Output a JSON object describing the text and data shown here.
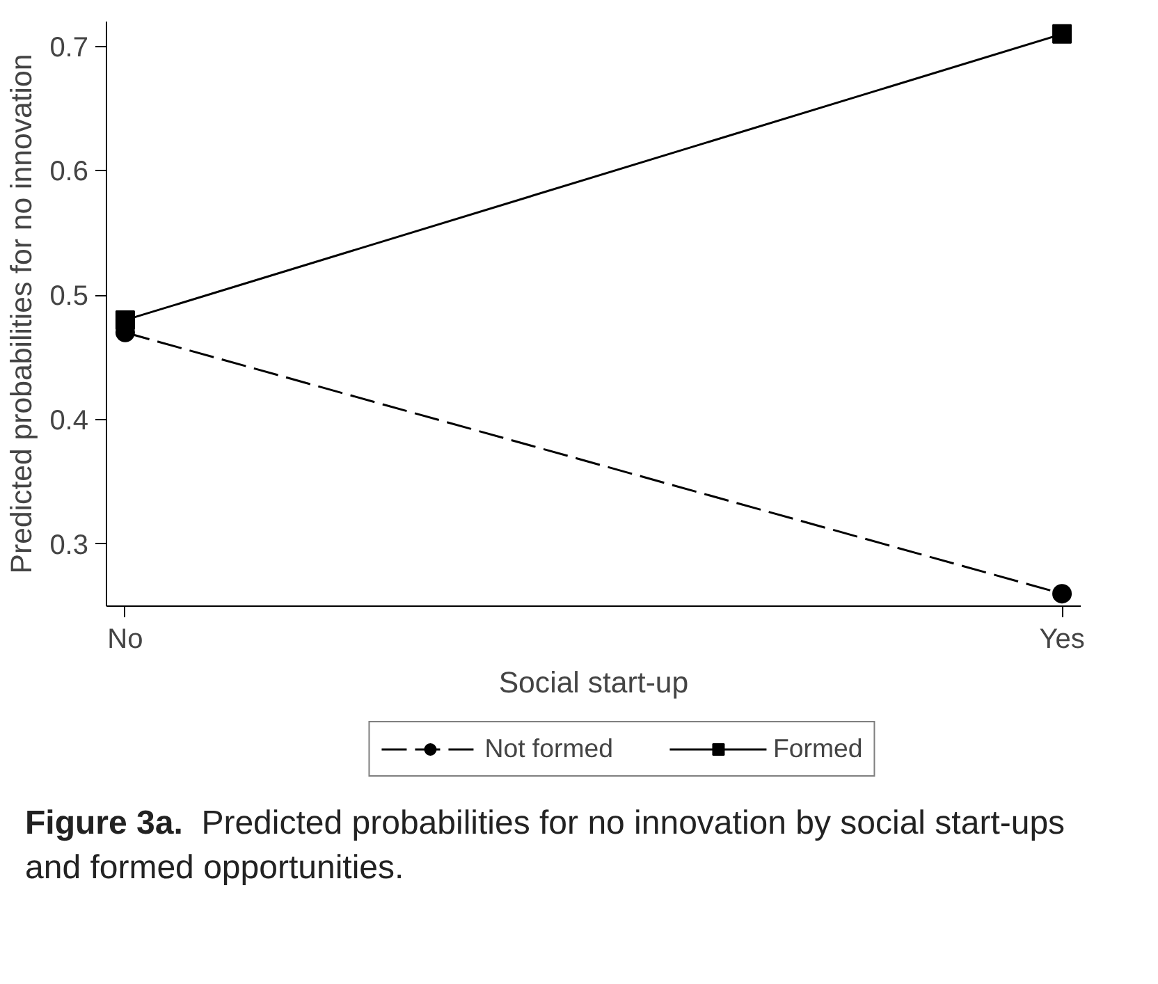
{
  "chart_data": {
    "type": "line",
    "xlabel": "Social start-up",
    "ylabel": "Predicted probabilities for no innovation",
    "categories": [
      "No",
      "Yes"
    ],
    "series": [
      {
        "name": "Not formed",
        "color": "#000000",
        "values": [
          0.47,
          0.26
        ],
        "marker": "circle",
        "line_style": "dashed"
      },
      {
        "name": "Formed",
        "color": "#000000",
        "values": [
          0.48,
          0.71
        ],
        "marker": "square",
        "line_style": "solid"
      }
    ],
    "ylim": [
      0.25,
      0.72
    ],
    "yticks": [
      0.3,
      0.4,
      0.5,
      0.6,
      0.7
    ],
    "grid": false,
    "legend": "bottom",
    "annotations": [
      "Figure 3a.",
      "Predicted probabilities for no innovation by social start-ups and formed opportunities."
    ]
  }
}
